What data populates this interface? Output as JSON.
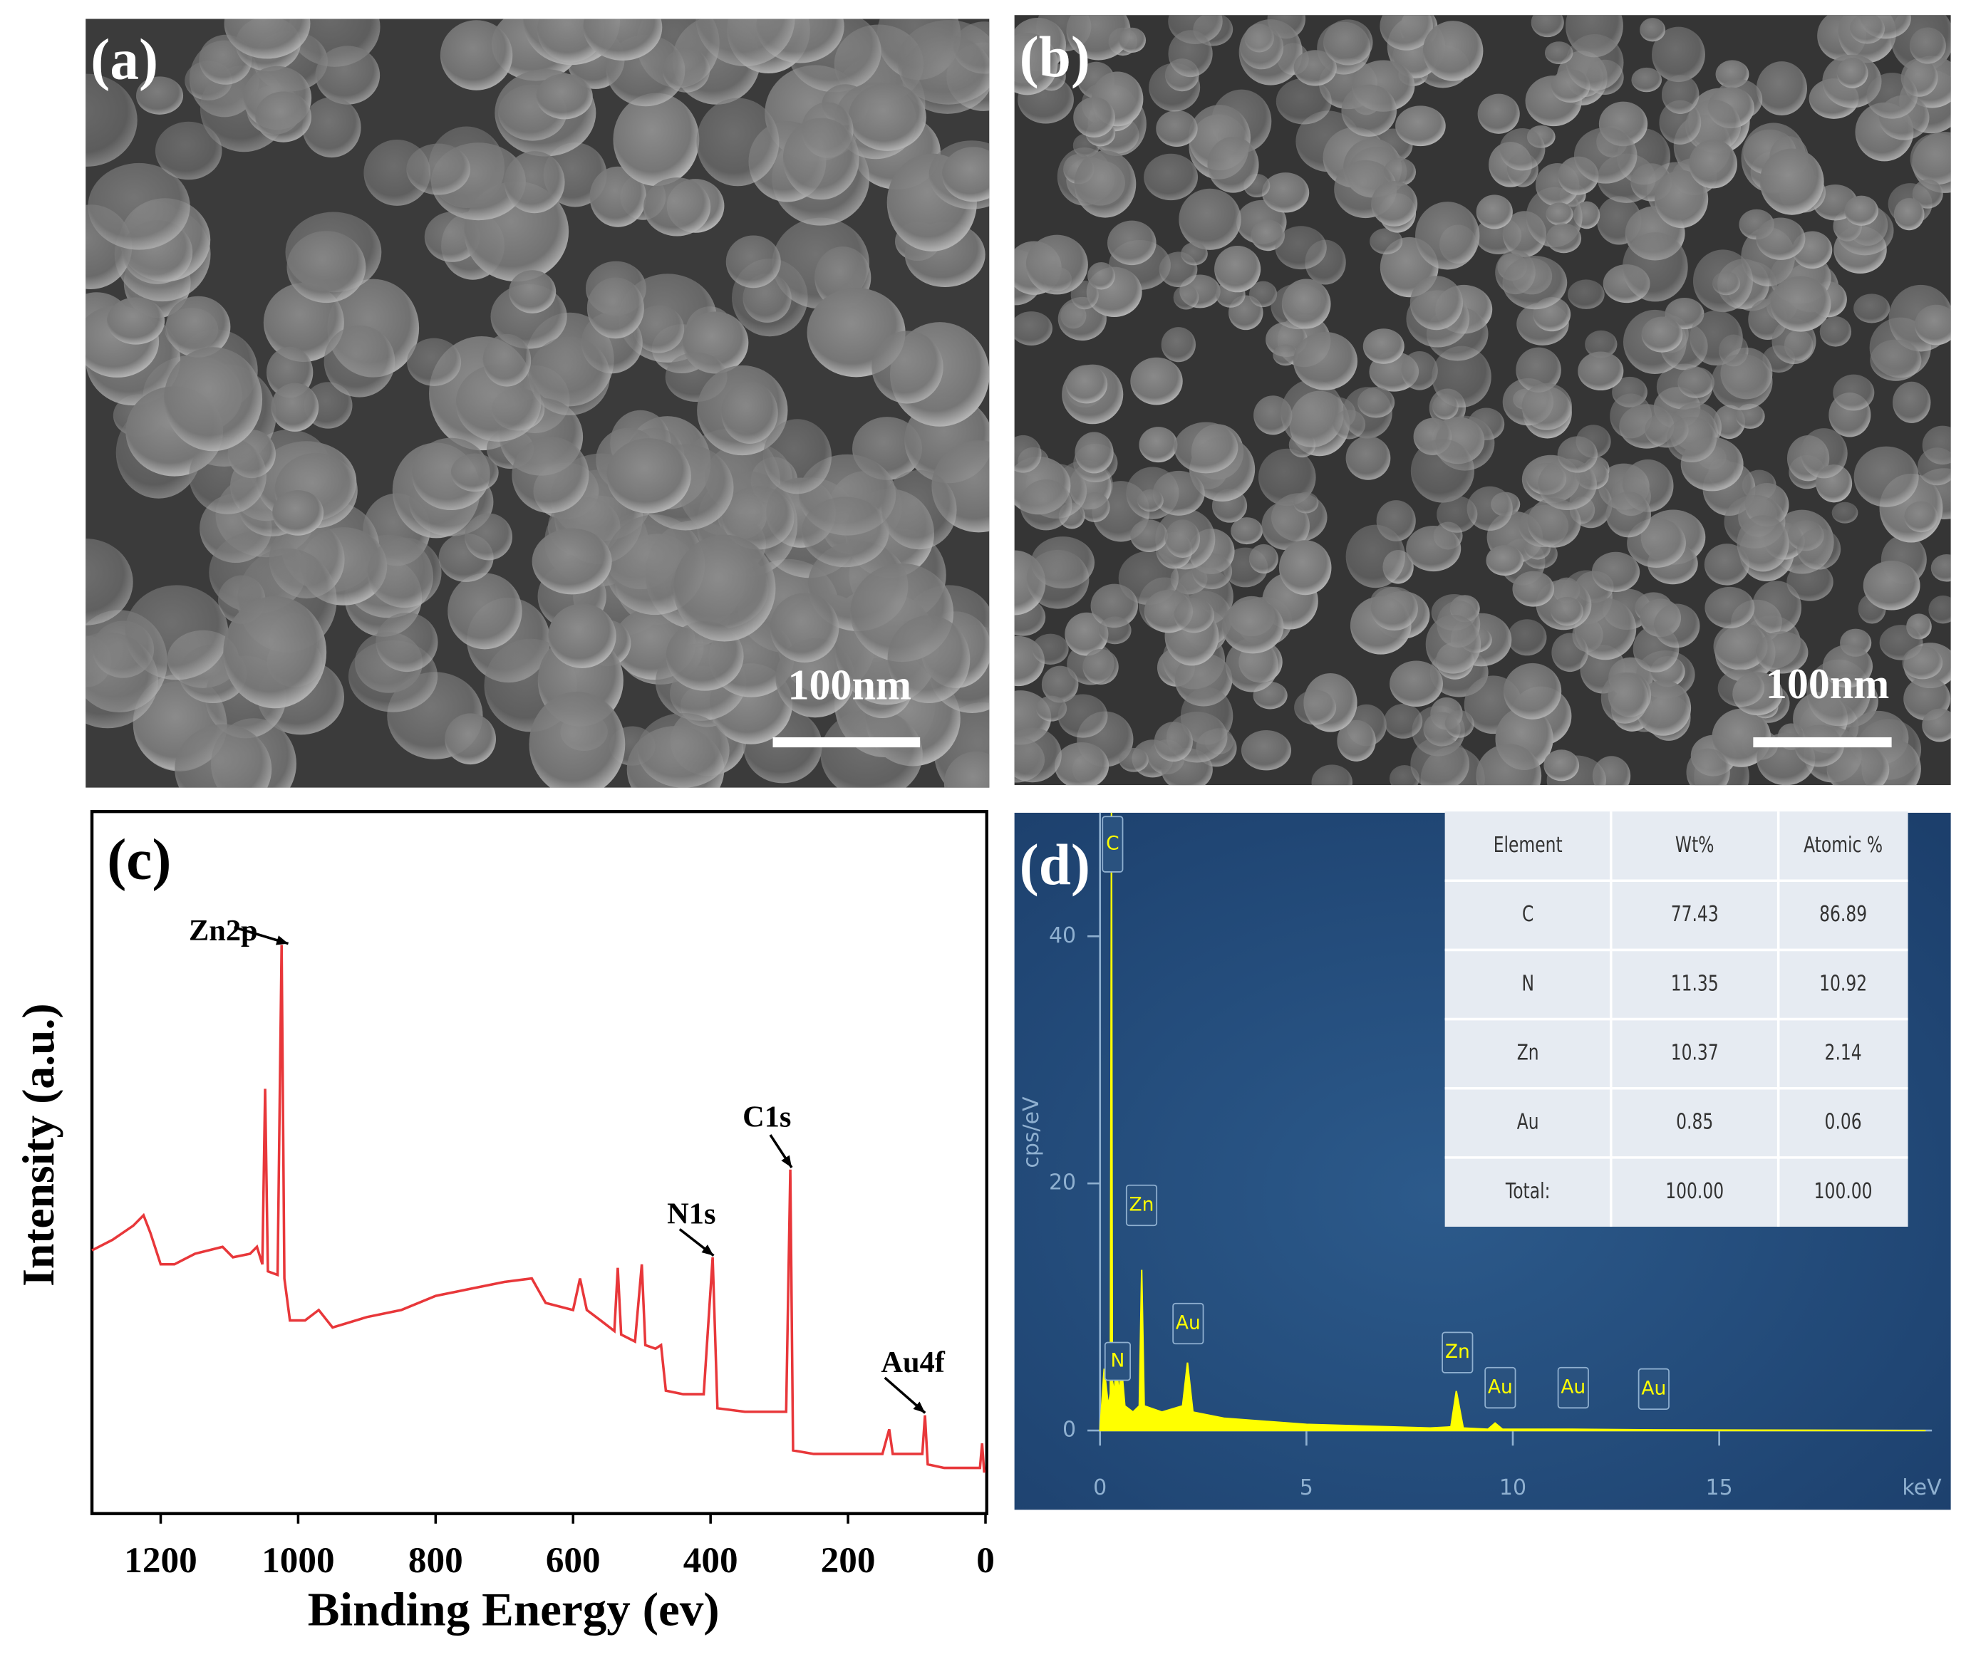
{
  "panels": [
    {
      "label": "(a)",
      "scale_bar": "100nm"
    },
    {
      "label": "(b)",
      "scale_bar": "100nm"
    }
  ],
  "chart_data": [
    {
      "type": "line",
      "panel_label": "(c)",
      "x_label": "Binding Energy (ev)",
      "y_label": "Intensity (a.u.)",
      "xlim": [
        1300,
        0
      ],
      "xticks": [
        1200,
        1000,
        800,
        600,
        400,
        200,
        0
      ],
      "ylim": [
        0,
        100
      ],
      "color": "#e8373a",
      "annotations": [
        "Zn2p",
        "C1s",
        "N1s",
        "Au4f"
      ],
      "x": [
        1300,
        1270,
        1240,
        1225,
        1215,
        1200,
        1180,
        1150,
        1110,
        1095,
        1070,
        1060,
        1052,
        1048,
        1044,
        1030,
        1024,
        1020,
        1012,
        990,
        970,
        950,
        900,
        850,
        800,
        750,
        700,
        660,
        640,
        600,
        590,
        580,
        560,
        540,
        535,
        530,
        510,
        500,
        495,
        480,
        472,
        465,
        440,
        410,
        397,
        390,
        350,
        300,
        290,
        284,
        280,
        250,
        200,
        150,
        140,
        135,
        110,
        92,
        88,
        84,
        60,
        20,
        8,
        5,
        2,
        0
      ],
      "values": [
        37.5,
        39,
        41,
        42.5,
        40,
        35.5,
        35.5,
        37,
        38,
        36.5,
        37,
        38,
        35.5,
        60.5,
        34.5,
        34,
        81,
        33.5,
        27.5,
        27.5,
        29,
        26.5,
        28,
        29,
        31,
        32,
        33,
        33.5,
        30,
        29,
        33.5,
        29,
        27.5,
        26,
        35,
        25.5,
        24.5,
        35.5,
        24,
        23.5,
        24,
        17.5,
        17,
        17,
        36.5,
        15,
        14.5,
        14.5,
        14.5,
        49,
        9,
        8.5,
        8.5,
        8.5,
        12,
        8.5,
        8.5,
        8.5,
        14,
        7,
        6.5,
        6.5,
        6.5,
        10,
        6,
        6
      ]
    },
    {
      "type": "area",
      "panel_label": "(d)",
      "x_label": "keV",
      "y_label": "cps/eV",
      "xlim": [
        0,
        20
      ],
      "xticks": [
        0,
        5,
        10,
        15
      ],
      "ylim": [
        0,
        50
      ],
      "yticks": [
        0,
        20,
        40
      ],
      "color": "#ffff00",
      "peak_labels": [
        "C",
        "N",
        "Zn",
        "Au",
        "Zn",
        "Au",
        "Au",
        "Au"
      ],
      "x": [
        0,
        0.1,
        0.2,
        0.25,
        0.277,
        0.3,
        0.35,
        0.39,
        0.45,
        0.525,
        0.6,
        0.8,
        0.95,
        1.01,
        1.07,
        1.5,
        2.0,
        2.12,
        2.25,
        3,
        5,
        8,
        8.5,
        8.63,
        8.8,
        9.4,
        9.57,
        9.75,
        10,
        11.44,
        13.4,
        20
      ],
      "values": [
        0,
        5,
        2,
        3,
        50,
        4,
        3,
        6,
        3,
        5,
        2,
        1.5,
        2,
        13,
        2,
        1.5,
        2,
        5.5,
        1.5,
        1,
        0.5,
        0.2,
        0.3,
        3.2,
        0.2,
        0.1,
        0.6,
        0.1,
        0.1,
        0.1,
        0.05,
        0
      ],
      "table": {
        "columns": [
          "Element",
          "Wt%",
          "Atomic %"
        ],
        "rows": [
          [
            "C",
            "77.43",
            "86.89"
          ],
          [
            "N",
            "11.35",
            "10.92"
          ],
          [
            "Zn",
            "10.37",
            "2.14"
          ],
          [
            "Au",
            "0.85",
            "0.06"
          ],
          [
            "Total:",
            "100.00",
            "100.00"
          ]
        ]
      }
    }
  ]
}
